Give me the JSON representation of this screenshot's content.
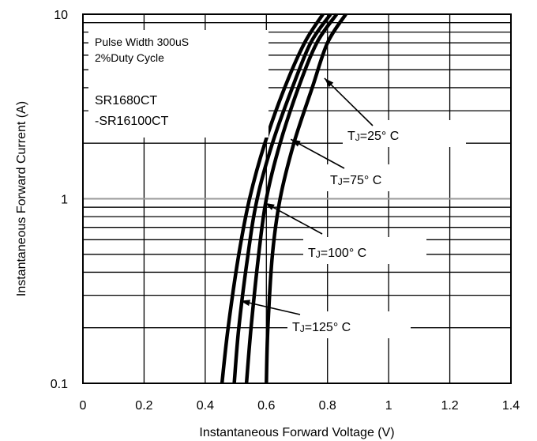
{
  "chart_data": {
    "type": "line",
    "title": "",
    "xlabel": "Instantaneous Forward Voltage (V)",
    "ylabel": "Instantaneous Forward Current (A)",
    "xlim": [
      0,
      1.4
    ],
    "ylim": [
      0.1,
      10
    ],
    "yscale": "log",
    "grid": true,
    "x_ticks": [
      "0",
      "0.2",
      "0.4",
      "0.6",
      "0.8",
      "1",
      "1.2",
      "1.4"
    ],
    "y_ticks": [
      "0.1",
      "1",
      "10"
    ],
    "notes": [
      "Pulse Width 300uS",
      "2%Duty Cycle",
      "SR1680CT",
      "-SR16100CT"
    ],
    "series": [
      {
        "name": "TJ=25° C",
        "color": "#000000",
        "points": [
          [
            0.6,
            0.1
          ],
          [
            0.605,
            0.2
          ],
          [
            0.62,
            0.5
          ],
          [
            0.645,
            1
          ],
          [
            0.69,
            2
          ],
          [
            0.75,
            4
          ],
          [
            0.8,
            7
          ],
          [
            0.86,
            10
          ]
        ]
      },
      {
        "name": "TJ=75° C",
        "color": "#000000",
        "points": [
          [
            0.535,
            0.1
          ],
          [
            0.55,
            0.2
          ],
          [
            0.575,
            0.5
          ],
          [
            0.6,
            1
          ],
          [
            0.645,
            2
          ],
          [
            0.705,
            4
          ],
          [
            0.765,
            7
          ],
          [
            0.83,
            10
          ]
        ]
      },
      {
        "name": "TJ=100° C",
        "color": "#000000",
        "points": [
          [
            0.495,
            0.1
          ],
          [
            0.51,
            0.2
          ],
          [
            0.54,
            0.5
          ],
          [
            0.57,
            1
          ],
          [
            0.62,
            2
          ],
          [
            0.685,
            4
          ],
          [
            0.745,
            7
          ],
          [
            0.81,
            10
          ]
        ]
      },
      {
        "name": "TJ=125° C",
        "color": "#000000",
        "points": [
          [
            0.455,
            0.1
          ],
          [
            0.475,
            0.2
          ],
          [
            0.51,
            0.5
          ],
          [
            0.545,
            1
          ],
          [
            0.595,
            2
          ],
          [
            0.66,
            4
          ],
          [
            0.725,
            7
          ],
          [
            0.785,
            10
          ]
        ]
      }
    ],
    "annotations": [
      {
        "text": "T",
        "sub": "J",
        "rest": "=25° C",
        "series": 0,
        "at": [
          0.79,
          4.5
        ]
      },
      {
        "text": "T",
        "sub": "J",
        "rest": "=75° C",
        "series": 1,
        "at": [
          0.68,
          2.1
        ]
      },
      {
        "text": "T",
        "sub": "J",
        "rest": "=100° C",
        "series": 2,
        "at": [
          0.595,
          0.95
        ]
      },
      {
        "text": "T",
        "sub": "J",
        "rest": "=125° C",
        "series": 3,
        "at": [
          0.515,
          0.28
        ]
      }
    ]
  }
}
